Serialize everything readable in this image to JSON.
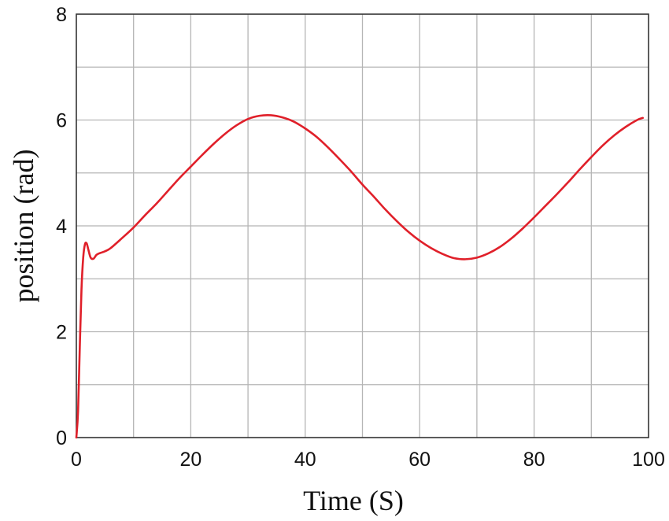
{
  "chart_data": {
    "type": "line",
    "title": "",
    "xlabel": "Time (S)",
    "ylabel": "position (rad)",
    "xlim": [
      0,
      100
    ],
    "ylim": [
      0,
      8
    ],
    "x_ticks": [
      0,
      20,
      40,
      60,
      80,
      100
    ],
    "y_ticks": [
      0,
      2,
      4,
      6,
      8
    ],
    "x_tick_labels": [
      "0",
      "20",
      "40",
      "60",
      "80",
      "100"
    ],
    "y_tick_labels": [
      "0",
      "2",
      "4",
      "6",
      "8"
    ],
    "x_grid": [
      0,
      10,
      20,
      30,
      40,
      50,
      60,
      70,
      80,
      90,
      100
    ],
    "y_grid": [
      0,
      1,
      2,
      3,
      4,
      5,
      6,
      7,
      8
    ],
    "grid": true,
    "series": [
      {
        "name": "position",
        "color": "#e0202a",
        "x": [
          0,
          0.3,
          0.6,
          0.9,
          1.2,
          1.5,
          1.8,
          2.1,
          2.5,
          3.0,
          3.5,
          4.0,
          5,
          6,
          8,
          10,
          12,
          14,
          16,
          18,
          20,
          22,
          24,
          26,
          28,
          30,
          32,
          34,
          36,
          38,
          40,
          42,
          44,
          46,
          48,
          50,
          52,
          54,
          56,
          58,
          60,
          62,
          64,
          66,
          68,
          70,
          72,
          74,
          76,
          78,
          80,
          82,
          84,
          86,
          88,
          90,
          92,
          94,
          96,
          98,
          99
        ],
        "y": [
          0,
          0.5,
          1.7,
          2.8,
          3.4,
          3.65,
          3.67,
          3.55,
          3.4,
          3.38,
          3.45,
          3.48,
          3.52,
          3.58,
          3.77,
          3.97,
          4.2,
          4.42,
          4.66,
          4.9,
          5.12,
          5.34,
          5.55,
          5.74,
          5.9,
          6.02,
          6.08,
          6.09,
          6.05,
          5.97,
          5.84,
          5.68,
          5.48,
          5.26,
          5.03,
          4.78,
          4.55,
          4.31,
          4.09,
          3.89,
          3.72,
          3.58,
          3.47,
          3.39,
          3.37,
          3.4,
          3.48,
          3.6,
          3.76,
          3.95,
          4.16,
          4.38,
          4.6,
          4.83,
          5.07,
          5.3,
          5.52,
          5.71,
          5.87,
          6.0,
          6.04
        ]
      }
    ]
  }
}
